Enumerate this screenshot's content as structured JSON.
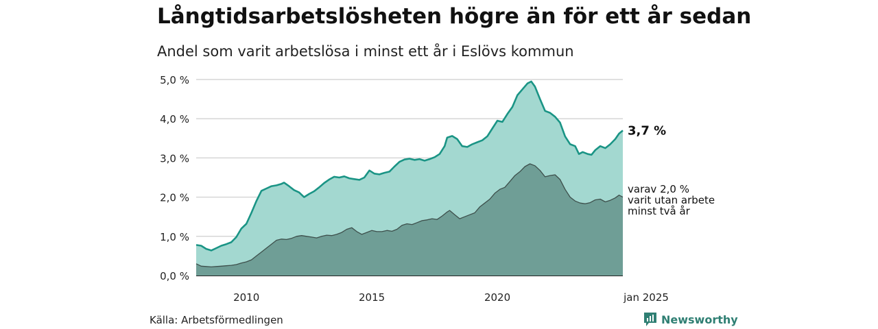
{
  "title": "Långtidsarbetslösheten högre än för ett år sedan",
  "subtitle": "Andel som varit arbetslösa i minst ett år i Eslövs kommun",
  "source": "Källa: Arbetsförmedlingen",
  "brand": "Newsworthy",
  "colors": {
    "area_total": "#a3d8d0",
    "line_total": "#1a9485",
    "area_2yr": "#6f9e96",
    "line_2yr": "#3d4f4b",
    "grid": "#d6d6d6",
    "brand": "#2f7f73"
  },
  "chart_data": {
    "type": "area",
    "title": "Långtidsarbetslösheten högre än för ett år sedan",
    "subtitle": "Andel som varit arbetslösa i minst ett år i Eslövs kommun",
    "xlabel": "",
    "ylabel": "",
    "x_range": [
      2008.0,
      2025.0
    ],
    "ylim": [
      0,
      5.0
    ],
    "y_ticks": [
      0.0,
      1.0,
      2.0,
      3.0,
      4.0,
      5.0
    ],
    "y_tick_labels": [
      "0,0 %",
      "1,0 %",
      "2,0 %",
      "3,0 %",
      "4,0 %",
      "5,0 %"
    ],
    "x_ticks": [
      2010,
      2015,
      2020,
      2025
    ],
    "x_tick_labels": [
      "2010",
      "2015",
      "2020",
      "jan 2025"
    ],
    "grid": true,
    "series": [
      {
        "points": [
          [
            2008.0,
            0.78
          ],
          [
            2008.2,
            0.76
          ],
          [
            2008.4,
            0.68
          ],
          [
            2008.6,
            0.64
          ],
          [
            2008.8,
            0.7
          ],
          [
            2009.0,
            0.76
          ],
          [
            2009.2,
            0.8
          ],
          [
            2009.4,
            0.85
          ],
          [
            2009.6,
            0.98
          ],
          [
            2009.8,
            1.2
          ],
          [
            2010.0,
            1.32
          ],
          [
            2010.2,
            1.6
          ],
          [
            2010.4,
            1.9
          ],
          [
            2010.6,
            2.16
          ],
          [
            2010.8,
            2.22
          ],
          [
            2011.0,
            2.28
          ],
          [
            2011.2,
            2.3
          ],
          [
            2011.4,
            2.34
          ],
          [
            2011.5,
            2.37
          ],
          [
            2011.7,
            2.28
          ],
          [
            2011.9,
            2.18
          ],
          [
            2012.1,
            2.12
          ],
          [
            2012.3,
            2.0
          ],
          [
            2012.5,
            2.08
          ],
          [
            2012.7,
            2.15
          ],
          [
            2012.9,
            2.25
          ],
          [
            2013.1,
            2.36
          ],
          [
            2013.3,
            2.45
          ],
          [
            2013.5,
            2.52
          ],
          [
            2013.7,
            2.5
          ],
          [
            2013.9,
            2.53
          ],
          [
            2014.1,
            2.48
          ],
          [
            2014.3,
            2.46
          ],
          [
            2014.5,
            2.44
          ],
          [
            2014.7,
            2.5
          ],
          [
            2014.9,
            2.68
          ],
          [
            2015.1,
            2.6
          ],
          [
            2015.3,
            2.58
          ],
          [
            2015.5,
            2.62
          ],
          [
            2015.7,
            2.65
          ],
          [
            2015.9,
            2.78
          ],
          [
            2016.1,
            2.9
          ],
          [
            2016.3,
            2.96
          ],
          [
            2016.5,
            2.98
          ],
          [
            2016.7,
            2.95
          ],
          [
            2016.9,
            2.97
          ],
          [
            2017.1,
            2.93
          ],
          [
            2017.3,
            2.97
          ],
          [
            2017.5,
            3.02
          ],
          [
            2017.7,
            3.1
          ],
          [
            2017.9,
            3.3
          ],
          [
            2018.0,
            3.52
          ],
          [
            2018.2,
            3.56
          ],
          [
            2018.4,
            3.48
          ],
          [
            2018.6,
            3.3
          ],
          [
            2018.8,
            3.28
          ],
          [
            2019.0,
            3.35
          ],
          [
            2019.2,
            3.4
          ],
          [
            2019.4,
            3.45
          ],
          [
            2019.6,
            3.55
          ],
          [
            2019.8,
            3.75
          ],
          [
            2020.0,
            3.95
          ],
          [
            2020.2,
            3.92
          ],
          [
            2020.4,
            4.12
          ],
          [
            2020.6,
            4.3
          ],
          [
            2020.8,
            4.6
          ],
          [
            2021.0,
            4.75
          ],
          [
            2021.2,
            4.9
          ],
          [
            2021.35,
            4.95
          ],
          [
            2021.5,
            4.82
          ],
          [
            2021.7,
            4.5
          ],
          [
            2021.9,
            4.2
          ],
          [
            2022.1,
            4.15
          ],
          [
            2022.3,
            4.05
          ],
          [
            2022.5,
            3.9
          ],
          [
            2022.7,
            3.55
          ],
          [
            2022.9,
            3.35
          ],
          [
            2023.1,
            3.3
          ],
          [
            2023.25,
            3.1
          ],
          [
            2023.4,
            3.15
          ],
          [
            2023.6,
            3.1
          ],
          [
            2023.75,
            3.08
          ],
          [
            2023.9,
            3.2
          ],
          [
            2024.1,
            3.3
          ],
          [
            2024.3,
            3.25
          ],
          [
            2024.5,
            3.35
          ],
          [
            2024.7,
            3.48
          ],
          [
            2024.85,
            3.62
          ],
          [
            2025.0,
            3.7
          ]
        ],
        "end_label": "3,7 %"
      },
      {
        "points": [
          [
            2008.0,
            0.3
          ],
          [
            2008.2,
            0.24
          ],
          [
            2008.4,
            0.23
          ],
          [
            2008.6,
            0.22
          ],
          [
            2008.8,
            0.23
          ],
          [
            2009.0,
            0.24
          ],
          [
            2009.2,
            0.25
          ],
          [
            2009.4,
            0.26
          ],
          [
            2009.6,
            0.28
          ],
          [
            2009.8,
            0.32
          ],
          [
            2010.0,
            0.35
          ],
          [
            2010.2,
            0.4
          ],
          [
            2010.4,
            0.5
          ],
          [
            2010.6,
            0.6
          ],
          [
            2010.8,
            0.7
          ],
          [
            2011.0,
            0.8
          ],
          [
            2011.2,
            0.9
          ],
          [
            2011.4,
            0.93
          ],
          [
            2011.6,
            0.92
          ],
          [
            2011.8,
            0.95
          ],
          [
            2012.0,
            1.0
          ],
          [
            2012.2,
            1.02
          ],
          [
            2012.4,
            1.0
          ],
          [
            2012.6,
            0.98
          ],
          [
            2012.8,
            0.96
          ],
          [
            2013.0,
            1.0
          ],
          [
            2013.2,
            1.03
          ],
          [
            2013.4,
            1.02
          ],
          [
            2013.6,
            1.05
          ],
          [
            2013.8,
            1.1
          ],
          [
            2014.0,
            1.18
          ],
          [
            2014.2,
            1.22
          ],
          [
            2014.4,
            1.12
          ],
          [
            2014.6,
            1.05
          ],
          [
            2014.8,
            1.1
          ],
          [
            2015.0,
            1.15
          ],
          [
            2015.2,
            1.12
          ],
          [
            2015.4,
            1.12
          ],
          [
            2015.6,
            1.15
          ],
          [
            2015.8,
            1.13
          ],
          [
            2016.0,
            1.18
          ],
          [
            2016.2,
            1.28
          ],
          [
            2016.4,
            1.32
          ],
          [
            2016.6,
            1.3
          ],
          [
            2016.8,
            1.35
          ],
          [
            2017.0,
            1.4
          ],
          [
            2017.2,
            1.42
          ],
          [
            2017.4,
            1.45
          ],
          [
            2017.6,
            1.43
          ],
          [
            2017.8,
            1.52
          ],
          [
            2018.0,
            1.62
          ],
          [
            2018.1,
            1.66
          ],
          [
            2018.3,
            1.55
          ],
          [
            2018.5,
            1.45
          ],
          [
            2018.7,
            1.5
          ],
          [
            2018.9,
            1.55
          ],
          [
            2019.1,
            1.6
          ],
          [
            2019.3,
            1.75
          ],
          [
            2019.5,
            1.85
          ],
          [
            2019.7,
            1.95
          ],
          [
            2019.9,
            2.1
          ],
          [
            2020.1,
            2.2
          ],
          [
            2020.3,
            2.25
          ],
          [
            2020.5,
            2.4
          ],
          [
            2020.7,
            2.55
          ],
          [
            2020.9,
            2.65
          ],
          [
            2021.1,
            2.78
          ],
          [
            2021.3,
            2.85
          ],
          [
            2021.5,
            2.8
          ],
          [
            2021.7,
            2.68
          ],
          [
            2021.9,
            2.52
          ],
          [
            2022.1,
            2.55
          ],
          [
            2022.3,
            2.57
          ],
          [
            2022.5,
            2.45
          ],
          [
            2022.7,
            2.2
          ],
          [
            2022.9,
            2.0
          ],
          [
            2023.1,
            1.9
          ],
          [
            2023.3,
            1.85
          ],
          [
            2023.5,
            1.83
          ],
          [
            2023.7,
            1.86
          ],
          [
            2023.9,
            1.93
          ],
          [
            2024.1,
            1.95
          ],
          [
            2024.3,
            1.88
          ],
          [
            2024.5,
            1.92
          ],
          [
            2024.7,
            1.98
          ],
          [
            2024.85,
            2.05
          ],
          [
            2025.0,
            2.0
          ]
        ],
        "end_label": [
          "varav 2,0 %",
          "varit utan arbete",
          "minst två år"
        ]
      }
    ]
  }
}
